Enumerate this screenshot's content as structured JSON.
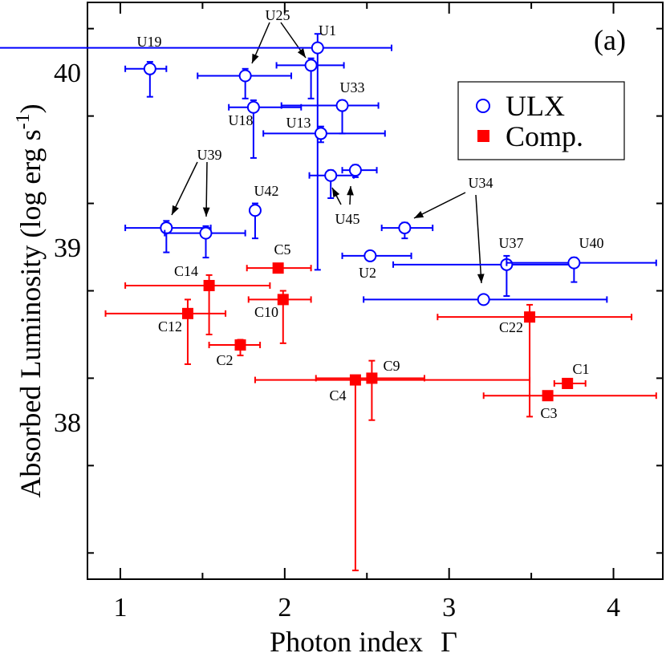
{
  "chart_data": {
    "type": "scatter",
    "title": "",
    "panel_label": "(a)",
    "xlabel_main": "Photon index",
    "xlabel_symbol": "Γ",
    "ylabel_main": "Absorbed Luminosity  (log erg s",
    "ylabel_exp": "-1",
    "ylabel_close": ")",
    "xlim": [
      0.8,
      4.3
    ],
    "ylim": [
      37.1,
      40.4
    ],
    "x_ticks": [
      1,
      2,
      3,
      4
    ],
    "x_tick_labels": [
      "1",
      "2",
      "3",
      "4"
    ],
    "y_ticks": [
      38,
      39,
      40
    ],
    "y_tick_labels": [
      "38",
      "39",
      "40"
    ],
    "colors": {
      "ulx": "#0000ff",
      "comp": "#ff0000",
      "axis": "#000000"
    },
    "legend": {
      "position": "top-right",
      "entries": [
        "ULX",
        "Comp."
      ]
    },
    "series": [
      {
        "name": "ULX",
        "marker": "open-circle",
        "points": [
          {
            "label": "U1",
            "x": 2.2,
            "y": 40.14,
            "xerr": [
              0.2,
              2.65
            ],
            "yerr": [
              38.87,
              40.22
            ]
          },
          {
            "label": "U19",
            "x": 1.18,
            "y": 40.02,
            "xerr": [
              1.03,
              1.28
            ],
            "yerr": [
              39.86,
              40.06
            ]
          },
          {
            "label": "U25",
            "x": 1.76,
            "y": 39.98,
            "xerr": [
              1.47,
              2.04
            ],
            "yerr": [
              39.85,
              40.02
            ]
          },
          {
            "label": "U25",
            "x": 2.16,
            "y": 40.04,
            "xerr": [
              1.95,
              2.36
            ],
            "yerr": [
              39.85,
              40.08
            ]
          },
          {
            "label": "U18",
            "x": 1.81,
            "y": 39.8,
            "xerr": [
              1.66,
              2.1
            ],
            "yerr": [
              39.51,
              39.84
            ]
          },
          {
            "label": "U33",
            "x": 2.35,
            "y": 39.81,
            "xerr": [
              1.98,
              2.57
            ],
            "yerr": [
              39.65,
              39.84
            ]
          },
          {
            "label": "U13",
            "x": 2.22,
            "y": 39.65,
            "xerr": [
              1.87,
              2.61
            ],
            "yerr": [
              39.6,
              39.69
            ]
          },
          {
            "label": "U45",
            "x": 2.28,
            "y": 39.41,
            "xerr": [
              2.15,
              2.42
            ],
            "yerr": [
              39.28,
              39.44
            ]
          },
          {
            "label": "U45",
            "x": 2.43,
            "y": 39.44,
            "xerr": [
              2.35,
              2.56
            ],
            "yerr": [
              39.4,
              39.47
            ]
          },
          {
            "label": "U39",
            "x": 1.28,
            "y": 39.11,
            "xerr": [
              1.03,
              1.55
            ],
            "yerr": [
              38.97,
              39.15
            ]
          },
          {
            "label": "U39",
            "x": 1.52,
            "y": 39.08,
            "xerr": [
              1.27,
              1.76
            ],
            "yerr": [
              38.94,
              39.12
            ]
          },
          {
            "label": "U42",
            "x": 1.82,
            "y": 39.21,
            "xerr": [
              1.81,
              1.83
            ],
            "yerr": [
              39.05,
              39.25
            ]
          },
          {
            "label": "U34",
            "x": 2.73,
            "y": 39.11,
            "xerr": [
              2.59,
              2.9
            ],
            "yerr": [
              39.05,
              39.14
            ]
          },
          {
            "label": "U2",
            "x": 2.52,
            "y": 38.95,
            "xerr": [
              2.35,
              2.77
            ],
            "yerr": [
              38.95,
              38.95
            ]
          },
          {
            "label": "U37",
            "x": 3.35,
            "y": 38.9,
            "xerr": [
              2.66,
              3.77
            ],
            "yerr": [
              38.72,
              38.95
            ]
          },
          {
            "label": "U40",
            "x": 3.76,
            "y": 38.91,
            "xerr": [
              3.35,
              4.26
            ],
            "yerr": [
              38.8,
              38.94
            ]
          },
          {
            "label": "U34",
            "x": 3.21,
            "y": 38.7,
            "xerr": [
              2.48,
              3.96
            ],
            "yerr": [
              38.7,
              38.7
            ]
          }
        ]
      },
      {
        "name": "Comp.",
        "marker": "filled-square",
        "points": [
          {
            "label": "C5",
            "x": 1.96,
            "y": 38.88,
            "xerr": [
              1.77,
              2.16
            ],
            "yerr": [
              38.88,
              38.88
            ]
          },
          {
            "label": "C14",
            "x": 1.54,
            "y": 38.78,
            "xerr": [
              1.03,
              1.91
            ],
            "yerr": [
              38.5,
              38.84
            ]
          },
          {
            "label": "C10",
            "x": 1.99,
            "y": 38.7,
            "xerr": [
              1.78,
              2.16
            ],
            "yerr": [
              38.45,
              38.75
            ]
          },
          {
            "label": "C12",
            "x": 1.41,
            "y": 38.62,
            "xerr": [
              0.91,
              1.64
            ],
            "yerr": [
              38.33,
              38.7
            ]
          },
          {
            "label": "C2",
            "x": 1.73,
            "y": 38.44,
            "xerr": [
              1.54,
              1.85
            ],
            "yerr": [
              38.38,
              38.47
            ]
          },
          {
            "label": "C22",
            "x": 3.49,
            "y": 38.6,
            "xerr": [
              2.93,
              4.11
            ],
            "yerr": [
              38.03,
              38.67
            ]
          },
          {
            "label": "C4",
            "x": 2.43,
            "y": 38.24,
            "xerr": [
              1.82,
              3.49
            ],
            "yerr": [
              37.15,
              38.24
            ]
          },
          {
            "label": "C9",
            "x": 2.53,
            "y": 38.25,
            "xerr": [
              2.19,
              2.85
            ],
            "yerr": [
              38.01,
              38.35
            ]
          },
          {
            "label": "C1",
            "x": 3.72,
            "y": 38.22,
            "xerr": [
              3.64,
              3.83
            ],
            "yerr": [
              38.2,
              38.24
            ]
          },
          {
            "label": "C3",
            "x": 3.6,
            "y": 38.15,
            "xerr": [
              3.21,
              4.26
            ],
            "yerr": [
              38.15,
              38.15
            ]
          }
        ]
      }
    ]
  }
}
